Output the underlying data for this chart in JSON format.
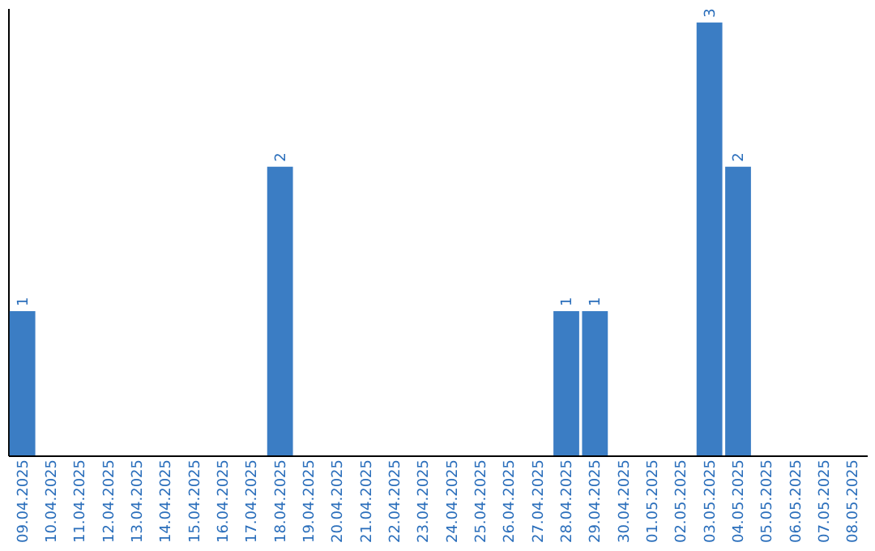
{
  "chart_data": {
    "type": "bar",
    "categories": [
      "09.04.2025",
      "10.04.2025",
      "11.04.2025",
      "12.04.2025",
      "13.04.2025",
      "14.04.2025",
      "15.04.2025",
      "16.04.2025",
      "17.04.2025",
      "18.04.2025",
      "19.04.2025",
      "20.04.2025",
      "21.04.2025",
      "22.04.2025",
      "23.04.2025",
      "24.04.2025",
      "25.04.2025",
      "26.04.2025",
      "27.04.2025",
      "28.04.2025",
      "29.04.2025",
      "30.04.2025",
      "01.05.2025",
      "02.05.2025",
      "03.05.2025",
      "04.05.2025",
      "05.05.2025",
      "06.05.2025",
      "07.05.2025",
      "08.05.2025"
    ],
    "values": [
      1,
      0,
      0,
      0,
      0,
      0,
      0,
      0,
      0,
      2,
      0,
      0,
      0,
      0,
      0,
      0,
      0,
      0,
      0,
      1,
      1,
      0,
      0,
      0,
      3,
      2,
      0,
      0,
      0,
      0
    ],
    "value_labels": [
      "1",
      null,
      null,
      null,
      null,
      null,
      null,
      null,
      null,
      "2",
      null,
      null,
      null,
      null,
      null,
      null,
      null,
      null,
      null,
      "1",
      "1",
      null,
      null,
      null,
      "3",
      "2",
      null,
      null,
      null,
      null
    ],
    "color": "#3b7dc4",
    "ylim": [
      0,
      3.1
    ],
    "tick_labels": "x",
    "grid": false
  }
}
